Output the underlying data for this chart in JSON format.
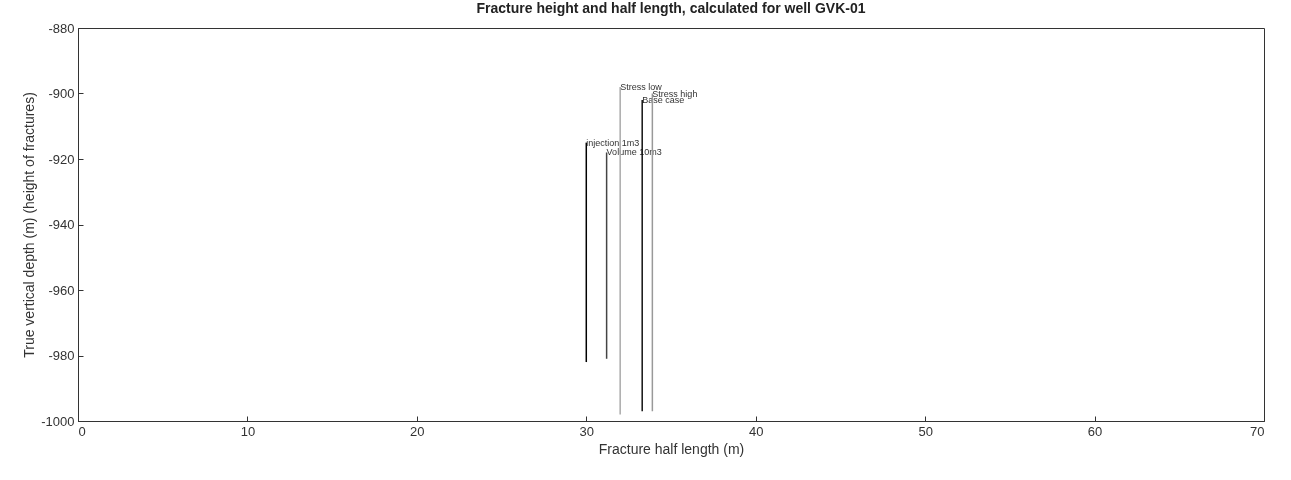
{
  "chart_data": {
    "type": "line",
    "title": "Fracture height and half length, calculated for well GVK-01",
    "xlabel": "Fracture half length (m)",
    "ylabel": "True vertical depth (m) (height of fractures)",
    "xlim": [
      0,
      70
    ],
    "xticks": [
      0,
      10,
      20,
      30,
      40,
      50,
      60,
      70
    ],
    "ylim": [
      -1000,
      -880
    ],
    "yticks": [
      -1000,
      -980,
      -960,
      -940,
      -920,
      -900,
      -880
    ],
    "grid": false,
    "series": [
      {
        "name": "injection 1m3",
        "color": "#000000",
        "x": [
          30.0,
          30.0
        ],
        "values": [
          -915,
          -982
        ]
      },
      {
        "name": "Volume 10m3",
        "color": "#444444",
        "x": [
          31.2,
          31.2
        ],
        "values": [
          -918,
          -981
        ]
      },
      {
        "name": "Stress low",
        "color": "#aaaaaa",
        "x": [
          32.0,
          32.0
        ],
        "values": [
          -898,
          -998
        ]
      },
      {
        "name": "Base case",
        "color": "#111111",
        "x": [
          33.3,
          33.3
        ],
        "values": [
          -902,
          -997
        ]
      },
      {
        "name": "Stress high",
        "color": "#999999",
        "x": [
          33.9,
          33.9
        ],
        "values": [
          -900,
          -997
        ]
      }
    ]
  }
}
